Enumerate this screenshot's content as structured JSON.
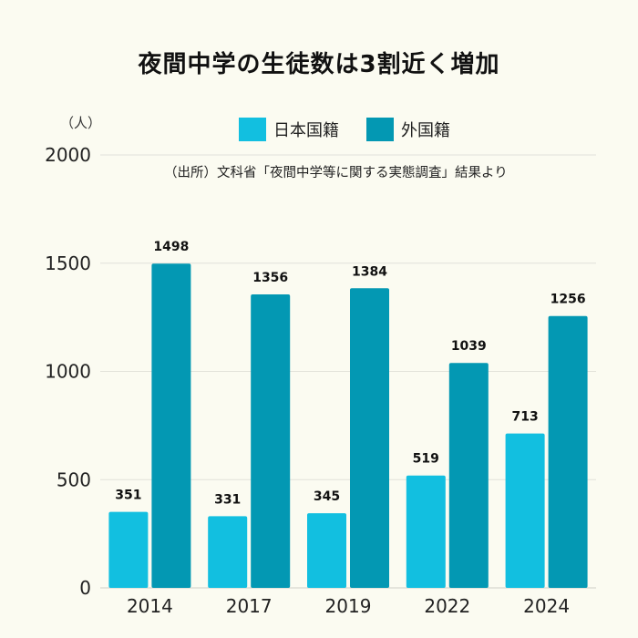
{
  "title": "夜間中学の生徒数は3割近く増加",
  "unit_label": "（人）",
  "source": "（出所）文科省「夜間中学等に関する実態調査」結果より",
  "chart_data": {
    "type": "bar",
    "categories": [
      "2014",
      "2017",
      "2019",
      "2022",
      "2024"
    ],
    "series": [
      {
        "name": "日本国籍",
        "values": [
          351,
          331,
          345,
          519,
          713
        ],
        "color": "#12bfe0"
      },
      {
        "name": "外国籍",
        "values": [
          1498,
          1356,
          1384,
          1039,
          1256
        ],
        "color": "#0398b3"
      }
    ],
    "yticks": [
      0,
      500,
      1000,
      1500,
      2000
    ],
    "ylim": [
      0,
      2000
    ],
    "grid": true,
    "legend": "top"
  }
}
